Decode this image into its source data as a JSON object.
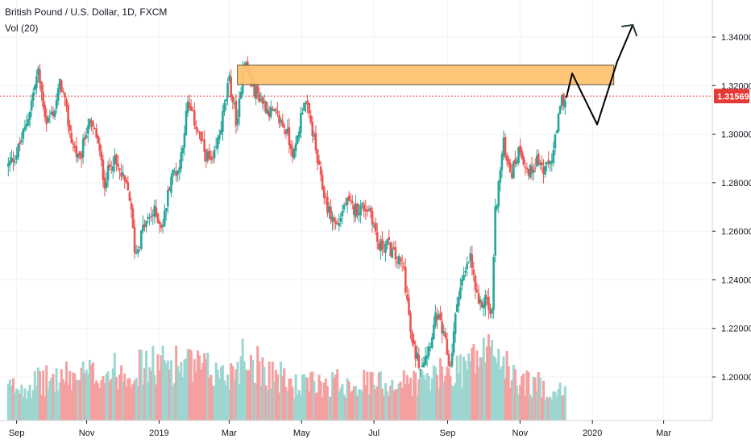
{
  "header": {
    "title": "British Pound / U.S. Dollar, 1D, FXCM",
    "volume_label": "Vol (20)"
  },
  "colors": {
    "up": "#26a69a",
    "down": "#ef5350",
    "vol_up": "#9dd6d0",
    "vol_down": "#f5a0a0",
    "zone_fill": "#ffc372",
    "zone_stroke": "#5d4a2a",
    "arrow": "#1f3a2e",
    "current_price": "#e53935",
    "grid": "#f0f3fa",
    "axis_text": "#131722"
  },
  "chart_data": {
    "type": "candlestick",
    "title": "British Pound / U.S. Dollar, 1D, FXCM",
    "ylim": [
      1.185,
      1.3555
    ],
    "y_ticks": [
      "1.34000",
      "1.32000",
      "1.30000",
      "1.28000",
      "1.26000",
      "1.24000",
      "1.22000",
      "1.20000"
    ],
    "x_ticks": [
      "Sep",
      "Nov",
      "2019",
      "Mar",
      "May",
      "Jul",
      "Sep",
      "Nov",
      "2020",
      "Mar"
    ],
    "current_price": "1.31569",
    "price_path": [
      [
        "2018-08-27",
        1.287
      ],
      [
        "2018-09-03",
        1.292
      ],
      [
        "2018-09-10",
        1.302
      ],
      [
        "2018-09-14",
        1.31
      ],
      [
        "2018-09-21",
        1.326
      ],
      [
        "2018-09-28",
        1.305
      ],
      [
        "2018-10-05",
        1.31
      ],
      [
        "2018-10-10",
        1.322
      ],
      [
        "2018-10-19",
        1.298
      ],
      [
        "2018-10-26",
        1.288
      ],
      [
        "2018-11-02",
        1.305
      ],
      [
        "2018-11-09",
        1.3
      ],
      [
        "2018-11-16",
        1.28
      ],
      [
        "2018-11-23",
        1.29
      ],
      [
        "2018-11-30",
        1.283
      ],
      [
        "2018-12-07",
        1.275
      ],
      [
        "2018-12-12",
        1.25
      ],
      [
        "2018-12-19",
        1.262
      ],
      [
        "2018-12-28",
        1.268
      ],
      [
        "2019-01-04",
        1.262
      ],
      [
        "2019-01-11",
        1.283
      ],
      [
        "2019-01-18",
        1.286
      ],
      [
        "2019-01-25",
        1.312
      ],
      [
        "2019-02-01",
        1.304
      ],
      [
        "2019-02-08",
        1.293
      ],
      [
        "2019-02-15",
        1.287
      ],
      [
        "2019-02-22",
        1.303
      ],
      [
        "2019-03-01",
        1.322
      ],
      [
        "2019-03-08",
        1.303
      ],
      [
        "2019-03-13",
        1.332
      ],
      [
        "2019-03-20",
        1.32
      ],
      [
        "2019-03-27",
        1.315
      ],
      [
        "2019-04-03",
        1.31
      ],
      [
        "2019-04-10",
        1.307
      ],
      [
        "2019-04-17",
        1.303
      ],
      [
        "2019-04-25",
        1.291
      ],
      [
        "2019-05-03",
        1.315
      ],
      [
        "2019-05-10",
        1.302
      ],
      [
        "2019-05-17",
        1.281
      ],
      [
        "2019-05-24",
        1.268
      ],
      [
        "2019-05-31",
        1.262
      ],
      [
        "2019-06-07",
        1.272
      ],
      [
        "2019-06-14",
        1.269
      ],
      [
        "2019-06-21",
        1.27
      ],
      [
        "2019-06-28",
        1.269
      ],
      [
        "2019-07-05",
        1.253
      ],
      [
        "2019-07-12",
        1.255
      ],
      [
        "2019-07-19",
        1.249
      ],
      [
        "2019-07-26",
        1.245
      ],
      [
        "2019-08-02",
        1.213
      ],
      [
        "2019-08-09",
        1.205
      ],
      [
        "2019-08-16",
        1.212
      ],
      [
        "2019-08-23",
        1.226
      ],
      [
        "2019-08-30",
        1.214
      ],
      [
        "2019-09-03",
        1.203
      ],
      [
        "2019-09-10",
        1.235
      ],
      [
        "2019-09-17",
        1.244
      ],
      [
        "2019-09-20",
        1.25
      ],
      [
        "2019-09-27",
        1.228
      ],
      [
        "2019-10-04",
        1.233
      ],
      [
        "2019-10-08",
        1.222
      ],
      [
        "2019-10-11",
        1.267
      ],
      [
        "2019-10-18",
        1.296
      ],
      [
        "2019-10-25",
        1.284
      ],
      [
        "2019-11-01",
        1.295
      ],
      [
        "2019-11-08",
        1.283
      ],
      [
        "2019-11-15",
        1.29
      ],
      [
        "2019-11-22",
        1.284
      ],
      [
        "2019-11-29",
        1.292
      ],
      [
        "2019-12-06",
        1.314
      ],
      [
        "2019-12-10",
        1.315
      ]
    ],
    "volume_pattern": [
      [
        "2018-08-27",
        0.42
      ],
      [
        "2018-10-10",
        0.55
      ],
      [
        "2018-11-16",
        0.62
      ],
      [
        "2018-12-12",
        0.68
      ],
      [
        "2019-01-15",
        0.75
      ],
      [
        "2019-02-28",
        0.58
      ],
      [
        "2019-03-13",
        0.85
      ],
      [
        "2019-04-25",
        0.45
      ],
      [
        "2019-05-31",
        0.5
      ],
      [
        "2019-07-12",
        0.48
      ],
      [
        "2019-08-09",
        0.52
      ],
      [
        "2019-09-03",
        0.62
      ],
      [
        "2019-10-11",
        0.95
      ],
      [
        "2019-10-25",
        0.55
      ],
      [
        "2019-12-10",
        0.35
      ]
    ],
    "resistance_zone": {
      "y_top": 1.3284,
      "y_bottom": 1.3204,
      "x_start": "2019-03-08",
      "x_end": "2020-01-19"
    },
    "projection_path": [
      [
        "2019-12-10",
        1.315
      ],
      [
        "2019-12-15",
        1.325
      ],
      [
        "2020-01-05",
        1.304
      ],
      [
        "2020-01-22",
        1.33
      ],
      [
        "2020-02-04",
        1.345
      ]
    ]
  }
}
